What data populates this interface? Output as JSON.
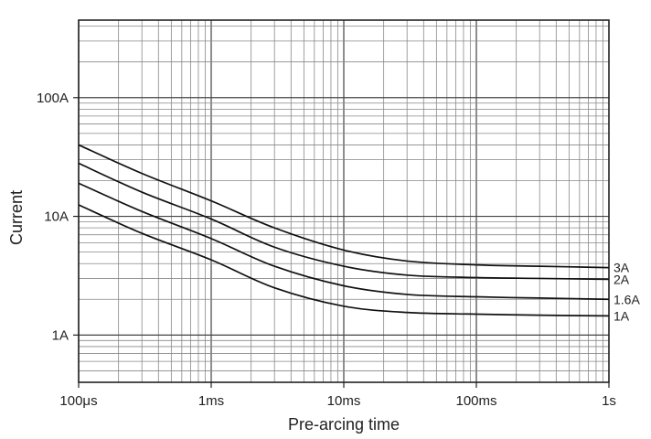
{
  "chart_data": {
    "type": "line",
    "xscale": "log",
    "yscale": "log",
    "grid": true,
    "xlabel": "Pre-arcing time",
    "ylabel": "Current",
    "xlim": [
      "100µs",
      "1s"
    ],
    "xlim_seconds": [
      0.0001,
      1
    ],
    "ylim_amps": [
      0.4,
      450
    ],
    "x_ticks": [
      {
        "value": 0.0001,
        "label": "100μs"
      },
      {
        "value": 0.001,
        "label": "1ms"
      },
      {
        "value": 0.01,
        "label": "10ms"
      },
      {
        "value": 0.1,
        "label": "100ms"
      },
      {
        "value": 1,
        "label": "1s"
      }
    ],
    "y_ticks": [
      {
        "value": 1,
        "label": "1A"
      },
      {
        "value": 10,
        "label": "10A"
      },
      {
        "value": 100,
        "label": "100A"
      }
    ],
    "series": [
      {
        "name": "3A",
        "points": [
          [
            0.0001,
            40
          ],
          [
            0.0003,
            23
          ],
          [
            0.001,
            13.5
          ],
          [
            0.003,
            8
          ],
          [
            0.01,
            5.2
          ],
          [
            0.03,
            4.2
          ],
          [
            0.1,
            3.9
          ],
          [
            0.3,
            3.8
          ],
          [
            1,
            3.7
          ]
        ]
      },
      {
        "name": "2A",
        "points": [
          [
            0.0001,
            28
          ],
          [
            0.0003,
            16
          ],
          [
            0.001,
            9.5
          ],
          [
            0.003,
            5.5
          ],
          [
            0.01,
            3.8
          ],
          [
            0.03,
            3.2
          ],
          [
            0.1,
            3.05
          ],
          [
            0.3,
            3.0
          ],
          [
            1,
            2.95
          ]
        ]
      },
      {
        "name": "1.6A",
        "points": [
          [
            0.0001,
            19
          ],
          [
            0.0003,
            11
          ],
          [
            0.001,
            6.5
          ],
          [
            0.003,
            3.8
          ],
          [
            0.01,
            2.6
          ],
          [
            0.03,
            2.2
          ],
          [
            0.1,
            2.1
          ],
          [
            0.3,
            2.05
          ],
          [
            1,
            2.0
          ]
        ]
      },
      {
        "name": "1A",
        "points": [
          [
            0.0001,
            12.5
          ],
          [
            0.0003,
            7.2
          ],
          [
            0.001,
            4.3
          ],
          [
            0.003,
            2.5
          ],
          [
            0.01,
            1.75
          ],
          [
            0.03,
            1.55
          ],
          [
            0.1,
            1.5
          ],
          [
            0.3,
            1.47
          ],
          [
            1,
            1.45
          ]
        ]
      }
    ]
  }
}
